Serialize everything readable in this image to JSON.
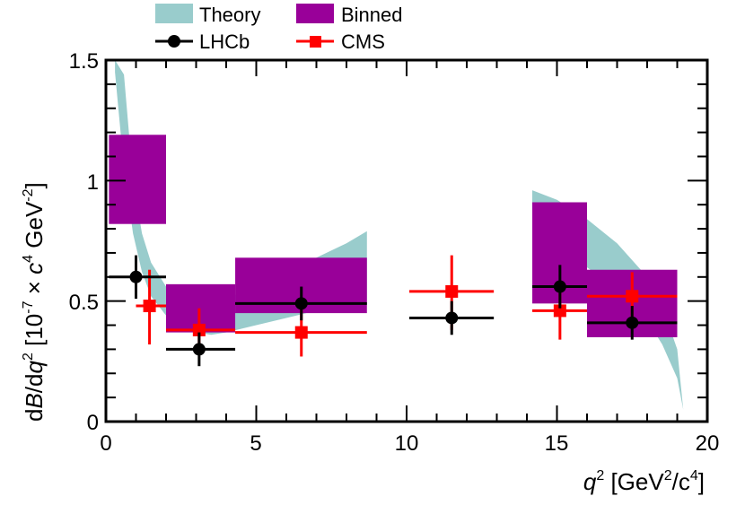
{
  "chart_data": {
    "type": "scatter",
    "xlabel": {
      "main": "q",
      "sup": "2",
      "unit_open": " [GeV",
      "unit_sup": "2",
      "unit_mid": "/c",
      "unit_sup2": "4",
      "unit_close": "]"
    },
    "ylabel": {
      "p1": "d",
      "p2": "B",
      "p3": "/d",
      "p4": "q",
      "p5": "2",
      "p6": " [10",
      "p7": "-7",
      "p8": " × ",
      "p9": "c",
      "p10": "4",
      "p11": " GeV",
      "p12": "-2",
      "p13": "]"
    },
    "xlim": [
      0,
      20
    ],
    "ylim": [
      0,
      1.5
    ],
    "x_tick_labels": [
      "0",
      "5",
      "10",
      "15",
      "20"
    ],
    "y_tick_labels": [
      "0",
      "0.5",
      "1",
      "1.5"
    ],
    "legend": {
      "theory": "Theory",
      "binned": "Binned",
      "lhcb": "LHCb",
      "cms": "CMS"
    },
    "colors": {
      "theory": "#99cccc",
      "binned": "#990099",
      "lhcb": "#000000",
      "cms": "#ff0000"
    },
    "theory_band": {
      "x": [
        0.3,
        0.6,
        0.9,
        1.2,
        1.5,
        2.0,
        2.5,
        3.0,
        3.5,
        4.0,
        5.0,
        6.0,
        7.0,
        8.0,
        8.68
      ],
      "lower": [
        1.45,
        1.05,
        0.78,
        0.62,
        0.52,
        0.44,
        0.4,
        0.37,
        0.36,
        0.37,
        0.4,
        0.43,
        0.46,
        0.48,
        0.5
      ],
      "upper": [
        1.5,
        1.44,
        1.0,
        0.78,
        0.66,
        0.56,
        0.52,
        0.5,
        0.5,
        0.51,
        0.56,
        0.62,
        0.68,
        0.74,
        0.79
      ],
      "x2": [
        14.18,
        15.0,
        16.0,
        17.0,
        18.0,
        18.5,
        19.0,
        19.2
      ],
      "lower2": [
        0.88,
        0.76,
        0.64,
        0.55,
        0.42,
        0.32,
        0.18,
        0.05
      ],
      "upper2": [
        0.96,
        0.92,
        0.84,
        0.74,
        0.6,
        0.48,
        0.3,
        0.05
      ]
    },
    "binned": [
      {
        "x0": 0.1,
        "x1": 2.0,
        "y0": 0.82,
        "y1": 1.19
      },
      {
        "x0": 2.0,
        "x1": 4.3,
        "y0": 0.37,
        "y1": 0.57
      },
      {
        "x0": 4.3,
        "x1": 8.68,
        "y0": 0.45,
        "y1": 0.68
      },
      {
        "x0": 14.18,
        "x1": 16.0,
        "y0": 0.49,
        "y1": 0.91
      },
      {
        "x0": 16.0,
        "x1": 19.0,
        "y0": 0.35,
        "y1": 0.63
      }
    ],
    "lhcb": [
      {
        "x": 1.0,
        "xlo": 0.1,
        "xhi": 2.0,
        "y": 0.6,
        "ylo": 0.51,
        "yhi": 0.69
      },
      {
        "x": 3.1,
        "xlo": 2.0,
        "xhi": 4.3,
        "y": 0.3,
        "ylo": 0.23,
        "yhi": 0.37
      },
      {
        "x": 6.5,
        "xlo": 4.3,
        "xhi": 8.68,
        "y": 0.49,
        "ylo": 0.42,
        "yhi": 0.56
      },
      {
        "x": 11.5,
        "xlo": 10.09,
        "xhi": 12.9,
        "y": 0.43,
        "ylo": 0.36,
        "yhi": 0.5
      },
      {
        "x": 15.1,
        "xlo": 14.18,
        "xhi": 16.0,
        "y": 0.56,
        "ylo": 0.47,
        "yhi": 0.65
      },
      {
        "x": 17.5,
        "xlo": 16.0,
        "xhi": 19.0,
        "y": 0.41,
        "ylo": 0.34,
        "yhi": 0.48
      }
    ],
    "cms": [
      {
        "x": 1.45,
        "xlo": 1.0,
        "xhi": 2.0,
        "y": 0.48,
        "ylo": 0.32,
        "yhi": 0.63
      },
      {
        "x": 3.1,
        "xlo": 2.0,
        "xhi": 4.3,
        "y": 0.38,
        "ylo": 0.28,
        "yhi": 0.47
      },
      {
        "x": 6.5,
        "xlo": 4.3,
        "xhi": 8.68,
        "y": 0.37,
        "ylo": 0.27,
        "yhi": 0.48
      },
      {
        "x": 11.5,
        "xlo": 10.09,
        "xhi": 12.9,
        "y": 0.54,
        "ylo": 0.38,
        "yhi": 0.69
      },
      {
        "x": 15.1,
        "xlo": 14.18,
        "xhi": 16.0,
        "y": 0.46,
        "ylo": 0.34,
        "yhi": 0.58
      },
      {
        "x": 17.5,
        "xlo": 16.0,
        "xhi": 19.0,
        "y": 0.52,
        "ylo": 0.42,
        "yhi": 0.62
      }
    ]
  }
}
